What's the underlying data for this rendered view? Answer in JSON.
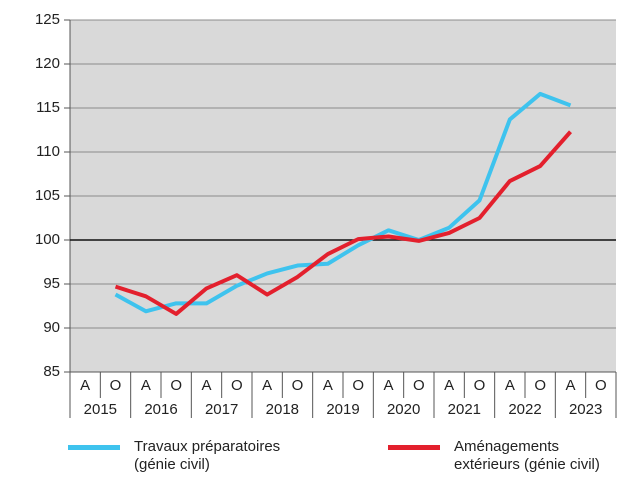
{
  "chart_data": {
    "type": "line",
    "categories": [
      "A",
      "O",
      "A",
      "O",
      "A",
      "O",
      "A",
      "O",
      "A",
      "O",
      "A",
      "O",
      "A",
      "O",
      "A",
      "O",
      "A",
      "O"
    ],
    "groups": [
      "2015",
      "2016",
      "2017",
      "2018",
      "2019",
      "2020",
      "2021",
      "2022",
      "2023"
    ],
    "series": [
      {
        "name": "Travaux préparatoires\n(génie civil)",
        "color": "#3ec3ee",
        "values": [
          null,
          93.8,
          91.9,
          92.8,
          92.8,
          94.8,
          96.2,
          97.1,
          97.3,
          99.4,
          101.1,
          100.0,
          101.4,
          104.5,
          113.7,
          116.6,
          115.3,
          null
        ]
      },
      {
        "name": "Aménagements\nextérieurs (génie civil)",
        "color": "#e3202d",
        "values": [
          null,
          94.7,
          93.6,
          91.6,
          94.5,
          96.0,
          93.8,
          95.8,
          98.4,
          100.1,
          100.4,
          99.9,
          100.8,
          102.5,
          106.7,
          108.4,
          112.3,
          null
        ]
      }
    ],
    "ylim": [
      85,
      125
    ],
    "yticks": [
      85,
      90,
      95,
      100,
      105,
      110,
      115,
      120,
      125
    ],
    "reference_line": 100,
    "grid": true
  }
}
